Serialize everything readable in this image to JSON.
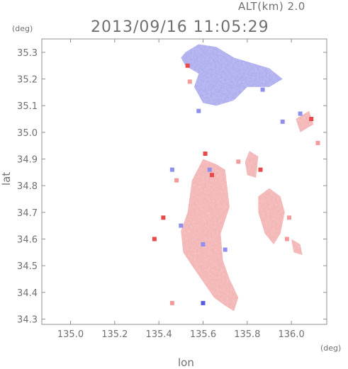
{
  "header": {
    "altitude_label": "ALT(km) 2.0",
    "timestamp": "2013/09/16 11:05:29"
  },
  "axes": {
    "x_label": "lon",
    "y_label": "lat",
    "x_unit": "(deg)",
    "y_unit": "(deg)"
  },
  "map_data": {
    "lon_range": [
      134.87,
      136.16
    ],
    "lat_range": [
      34.28,
      35.35
    ],
    "lon_ticks": [
      135.0,
      135.2,
      135.4,
      135.6,
      135.8,
      136.0
    ],
    "lon_tick_labels": [
      "135.0",
      "135.2",
      "135.4",
      "135.6",
      "135.8",
      "136.0"
    ],
    "lat_ticks": [
      34.3,
      34.4,
      34.5,
      34.6,
      34.7,
      34.8,
      34.9,
      35.0,
      35.1,
      35.2,
      35.3
    ],
    "lat_tick_labels": [
      "34.3",
      "34.4",
      "34.5",
      "34.6",
      "34.7",
      "34.8",
      "34.9",
      "35.0",
      "35.1",
      "35.2",
      "35.3"
    ],
    "colors": {
      "frame": "#909090",
      "approaching": "#8f8fee",
      "receding": "#f39a9a",
      "strong_receding": "#e84a4a",
      "strong_approaching": "#5a5ae0"
    },
    "echo_regions": [
      {
        "name": "north-blue-cluster",
        "polarity": "approaching",
        "points": [
          [
            135.52,
            35.3
          ],
          [
            135.58,
            35.33
          ],
          [
            135.66,
            35.32
          ],
          [
            135.74,
            35.28
          ],
          [
            135.82,
            35.26
          ],
          [
            135.9,
            35.24
          ],
          [
            135.96,
            35.2
          ],
          [
            135.9,
            35.17
          ],
          [
            135.8,
            35.17
          ],
          [
            135.74,
            35.12
          ],
          [
            135.66,
            35.1
          ],
          [
            135.6,
            35.11
          ],
          [
            135.56,
            35.17
          ],
          [
            135.58,
            35.22
          ],
          [
            135.52,
            35.25
          ],
          [
            135.5,
            35.28
          ]
        ]
      },
      {
        "name": "central-red-cluster",
        "polarity": "receding",
        "points": [
          [
            135.55,
            34.82
          ],
          [
            135.6,
            34.9
          ],
          [
            135.66,
            34.88
          ],
          [
            135.7,
            34.86
          ],
          [
            135.72,
            34.72
          ],
          [
            135.68,
            34.62
          ],
          [
            135.69,
            34.52
          ],
          [
            135.72,
            34.45
          ],
          [
            135.76,
            34.38
          ],
          [
            135.74,
            34.33
          ],
          [
            135.7,
            34.35
          ],
          [
            135.65,
            34.38
          ],
          [
            135.6,
            34.44
          ],
          [
            135.55,
            34.5
          ],
          [
            135.51,
            34.55
          ],
          [
            135.5,
            34.63
          ],
          [
            135.53,
            34.7
          ],
          [
            135.54,
            34.76
          ]
        ]
      },
      {
        "name": "east-red-cluster",
        "polarity": "receding",
        "points": [
          [
            135.85,
            34.76
          ],
          [
            135.9,
            34.79
          ],
          [
            135.95,
            34.76
          ],
          [
            135.97,
            34.7
          ],
          [
            135.95,
            34.62
          ],
          [
            135.92,
            34.58
          ],
          [
            135.88,
            34.62
          ],
          [
            135.85,
            34.7
          ]
        ]
      },
      {
        "name": "northeast-red-strip",
        "polarity": "receding",
        "points": [
          [
            135.81,
            34.93
          ],
          [
            135.85,
            34.91
          ],
          [
            135.84,
            34.83
          ],
          [
            135.8,
            34.84
          ],
          [
            135.79,
            34.89
          ]
        ]
      },
      {
        "name": "east-edge-cells",
        "polarity": "receding",
        "points": [
          [
            136.02,
            35.05
          ],
          [
            136.08,
            35.08
          ],
          [
            136.1,
            35.03
          ],
          [
            136.04,
            35.0
          ]
        ]
      },
      {
        "name": "southeast-cells",
        "polarity": "receding",
        "points": [
          [
            136.0,
            34.6
          ],
          [
            136.04,
            34.58
          ],
          [
            136.05,
            34.54
          ],
          [
            136.01,
            34.55
          ]
        ]
      }
    ],
    "echo_cells": [
      {
        "lon": 135.53,
        "lat": 35.25,
        "polarity": "strong_receding"
      },
      {
        "lon": 136.09,
        "lat": 35.05,
        "polarity": "strong_receding"
      },
      {
        "lon": 135.64,
        "lat": 34.84,
        "polarity": "strong_receding"
      },
      {
        "lon": 135.6,
        "lat": 34.58,
        "polarity": "approaching"
      },
      {
        "lon": 135.5,
        "lat": 34.65,
        "polarity": "approaching"
      },
      {
        "lon": 135.7,
        "lat": 34.56,
        "polarity": "approaching"
      },
      {
        "lon": 135.6,
        "lat": 34.36,
        "polarity": "strong_approaching"
      },
      {
        "lon": 135.58,
        "lat": 35.08,
        "polarity": "approaching"
      },
      {
        "lon": 135.87,
        "lat": 35.16,
        "polarity": "approaching"
      },
      {
        "lon": 136.04,
        "lat": 35.07,
        "polarity": "approaching"
      },
      {
        "lon": 135.96,
        "lat": 35.04,
        "polarity": "approaching"
      },
      {
        "lon": 135.42,
        "lat": 34.68,
        "polarity": "strong_receding"
      },
      {
        "lon": 135.48,
        "lat": 34.82,
        "polarity": "receding"
      },
      {
        "lon": 135.46,
        "lat": 34.86,
        "polarity": "approaching"
      },
      {
        "lon": 135.61,
        "lat": 34.92,
        "polarity": "strong_receding"
      },
      {
        "lon": 135.76,
        "lat": 34.89,
        "polarity": "receding"
      },
      {
        "lon": 135.86,
        "lat": 34.86,
        "polarity": "strong_receding"
      },
      {
        "lon": 135.98,
        "lat": 34.6,
        "polarity": "receding"
      },
      {
        "lon": 135.38,
        "lat": 34.6,
        "polarity": "strong_receding"
      },
      {
        "lon": 135.99,
        "lat": 34.68,
        "polarity": "receding"
      },
      {
        "lon": 136.12,
        "lat": 34.96,
        "polarity": "receding"
      },
      {
        "lon": 135.54,
        "lat": 35.19,
        "polarity": "receding"
      },
      {
        "lon": 135.46,
        "lat": 34.36,
        "polarity": "receding"
      },
      {
        "lon": 135.63,
        "lat": 34.86,
        "polarity": "approaching"
      }
    ]
  }
}
